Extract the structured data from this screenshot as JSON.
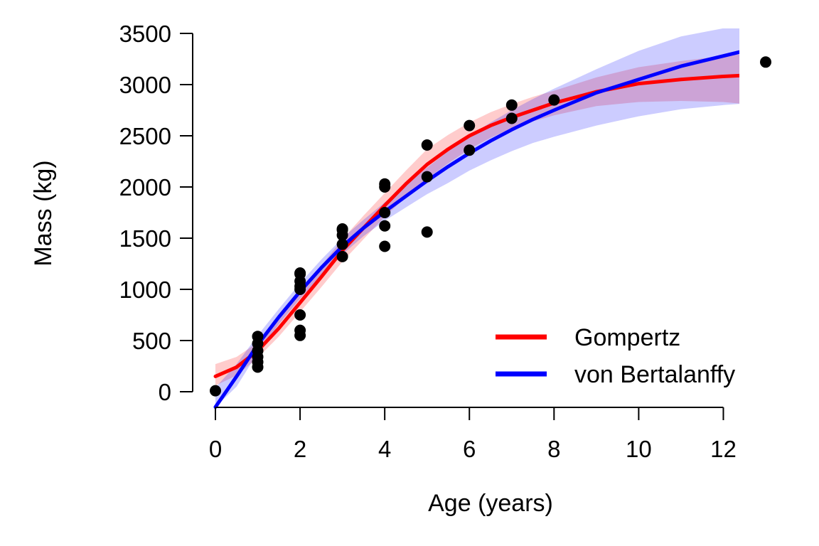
{
  "chart_data": {
    "type": "scatter",
    "title": "",
    "xlabel": "Age (years)",
    "ylabel": "Mass (kg)",
    "xlim": [
      0,
      13
    ],
    "ylim": [
      -150,
      3550
    ],
    "xticks": [
      0,
      2,
      4,
      6,
      8,
      10,
      12
    ],
    "yticks": [
      0,
      500,
      1000,
      1500,
      2000,
      2500,
      3000,
      3500
    ],
    "grid": false,
    "legend_position": "bottom-right",
    "points": {
      "color": "#000000",
      "x": [
        0,
        1,
        1,
        1,
        1,
        1,
        1,
        2,
        2,
        2,
        2,
        2,
        2,
        2,
        2,
        3,
        3,
        3,
        3,
        3,
        4,
        4,
        4,
        4,
        4,
        5,
        5,
        5,
        6,
        6,
        7,
        7,
        8,
        13
      ],
      "y": [
        10,
        240,
        290,
        340,
        400,
        470,
        540,
        550,
        600,
        750,
        1000,
        1030,
        1080,
        1150,
        1160,
        1320,
        1440,
        1530,
        1580,
        1590,
        1420,
        1620,
        1750,
        2000,
        2030,
        1560,
        2100,
        2410,
        2360,
        2600,
        2670,
        2800,
        2850,
        3220
      ]
    },
    "series": [
      {
        "name": "Gompertz",
        "color": "#ff0000",
        "band_color": "#ff0000",
        "x": [
          0,
          0.5,
          1,
          1.5,
          2,
          2.5,
          3,
          3.5,
          4,
          4.5,
          5,
          5.5,
          6,
          6.5,
          7,
          7.5,
          8,
          9,
          10,
          11,
          12,
          13
        ],
        "y": [
          150,
          240,
          400,
          620,
          870,
          1120,
          1380,
          1600,
          1820,
          2030,
          2220,
          2370,
          2500,
          2600,
          2680,
          2750,
          2820,
          2930,
          3010,
          3050,
          3080,
          3100
        ],
        "lower": [
          60,
          160,
          330,
          540,
          780,
          1020,
          1270,
          1490,
          1710,
          1900,
          2080,
          2230,
          2370,
          2480,
          2570,
          2640,
          2700,
          2790,
          2830,
          2840,
          2830,
          2790
        ],
        "upper": [
          270,
          340,
          480,
          700,
          960,
          1230,
          1490,
          1720,
          1940,
          2160,
          2370,
          2510,
          2630,
          2730,
          2810,
          2880,
          2940,
          3070,
          3170,
          3230,
          3280,
          3320
        ]
      },
      {
        "name": "von Bertalanffy",
        "color": "#0000ff",
        "band_color": "#0000ff",
        "x": [
          0,
          0.5,
          1,
          1.5,
          2,
          2.5,
          3,
          3.5,
          4,
          4.5,
          5,
          5.5,
          6,
          6.5,
          7,
          7.5,
          8,
          9,
          10,
          11,
          12,
          13
        ],
        "y": [
          -150,
          150,
          460,
          730,
          980,
          1210,
          1420,
          1600,
          1760,
          1910,
          2060,
          2200,
          2330,
          2450,
          2560,
          2660,
          2750,
          2920,
          3050,
          3180,
          3280,
          3380
        ],
        "lower": [
          -150,
          50,
          380,
          660,
          910,
          1130,
          1340,
          1520,
          1670,
          1800,
          1930,
          2040,
          2160,
          2260,
          2350,
          2430,
          2490,
          2600,
          2690,
          2760,
          2800,
          2830
        ],
        "upper": [
          40,
          270,
          550,
          810,
          1060,
          1290,
          1500,
          1680,
          1850,
          2020,
          2190,
          2350,
          2500,
          2630,
          2750,
          2860,
          2960,
          3150,
          3330,
          3470,
          3550,
          3550
        ]
      }
    ]
  }
}
